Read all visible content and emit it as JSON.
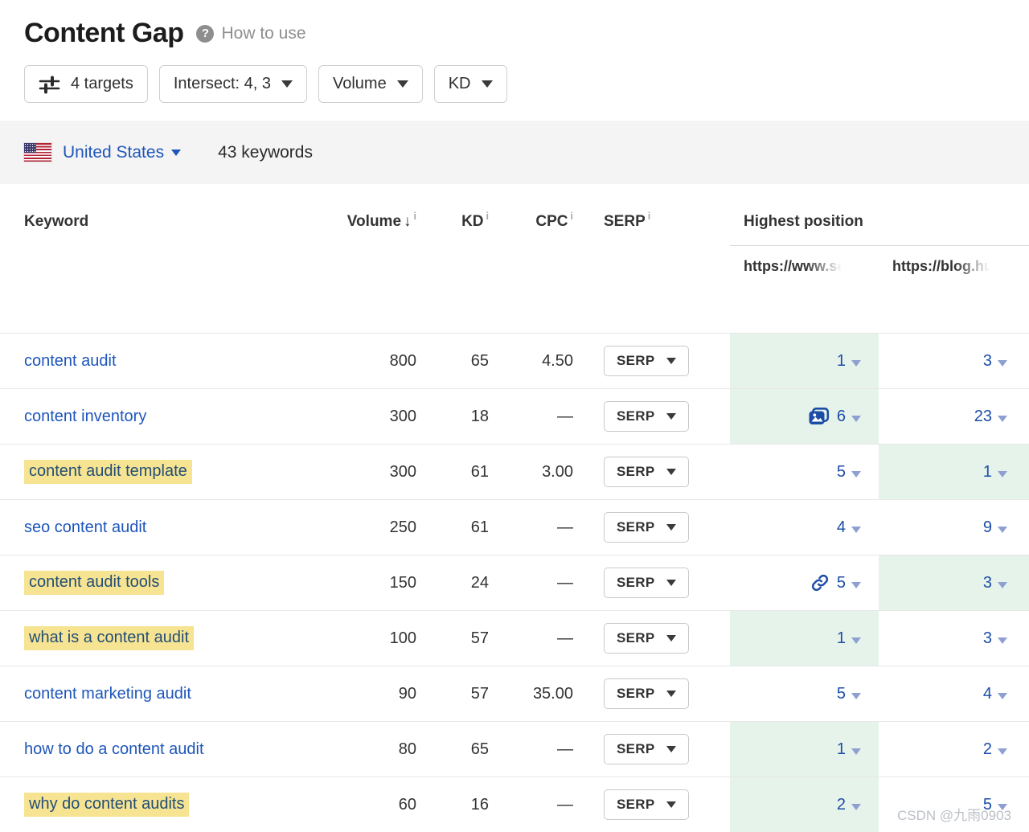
{
  "header": {
    "title": "Content Gap",
    "help_label": "How to use"
  },
  "toolbar": {
    "targets_label": "4 targets",
    "intersect_label": "Intersect: 4, 3",
    "volume_label": "Volume",
    "kd_label": "KD"
  },
  "filter_bar": {
    "country": "United States",
    "keywords_count": "43 keywords"
  },
  "table": {
    "headers": {
      "keyword": "Keyword",
      "volume": "Volume",
      "kd": "KD",
      "cpc": "CPC",
      "serp": "SERP",
      "highest_position": "Highest position",
      "sort_arrow": "↓",
      "info_mark": "i"
    },
    "subheaders": {
      "url1": "https://www.se",
      "url2": "https://blog.hu"
    },
    "serp_button_label": "SERP",
    "rows": [
      {
        "keyword": "content audit",
        "highlighted": false,
        "volume": "800",
        "kd": "65",
        "cpc": "4.50",
        "pos1": {
          "value": "1",
          "green": true,
          "icon": null
        },
        "pos2": {
          "value": "3",
          "green": false
        }
      },
      {
        "keyword": "content inventory",
        "highlighted": false,
        "volume": "300",
        "kd": "18",
        "cpc": "—",
        "pos1": {
          "value": "6",
          "green": true,
          "icon": "images"
        },
        "pos2": {
          "value": "23",
          "green": false
        }
      },
      {
        "keyword": "content audit template",
        "highlighted": true,
        "volume": "300",
        "kd": "61",
        "cpc": "3.00",
        "pos1": {
          "value": "5",
          "green": false,
          "icon": null
        },
        "pos2": {
          "value": "1",
          "green": true
        }
      },
      {
        "keyword": "seo content audit",
        "highlighted": false,
        "volume": "250",
        "kd": "61",
        "cpc": "—",
        "pos1": {
          "value": "4",
          "green": false,
          "icon": null
        },
        "pos2": {
          "value": "9",
          "green": false
        }
      },
      {
        "keyword": "content audit tools",
        "highlighted": true,
        "volume": "150",
        "kd": "24",
        "cpc": "—",
        "pos1": {
          "value": "5",
          "green": false,
          "icon": "link"
        },
        "pos2": {
          "value": "3",
          "green": true
        }
      },
      {
        "keyword": "what is a content audit",
        "highlighted": true,
        "volume": "100",
        "kd": "57",
        "cpc": "—",
        "pos1": {
          "value": "1",
          "green": true,
          "icon": null
        },
        "pos2": {
          "value": "3",
          "green": false
        }
      },
      {
        "keyword": "content marketing audit",
        "highlighted": false,
        "volume": "90",
        "kd": "57",
        "cpc": "35.00",
        "pos1": {
          "value": "5",
          "green": false,
          "icon": null
        },
        "pos2": {
          "value": "4",
          "green": false
        }
      },
      {
        "keyword": "how to do a content audit",
        "highlighted": false,
        "volume": "80",
        "kd": "65",
        "cpc": "—",
        "pos1": {
          "value": "1",
          "green": true,
          "icon": null
        },
        "pos2": {
          "value": "2",
          "green": false
        }
      },
      {
        "keyword": "why do content audits",
        "highlighted": true,
        "volume": "60",
        "kd": "16",
        "cpc": "—",
        "pos1": {
          "value": "2",
          "green": true,
          "icon": null
        },
        "pos2": {
          "value": "5",
          "green": false
        }
      }
    ]
  },
  "colors": {
    "link_blue": "#1e56bb",
    "position_blue": "#1c4da6",
    "highlight_yellow": "#f7e493",
    "green_cell": "#e6f3ea"
  },
  "watermark": "CSDN @九雨0903"
}
